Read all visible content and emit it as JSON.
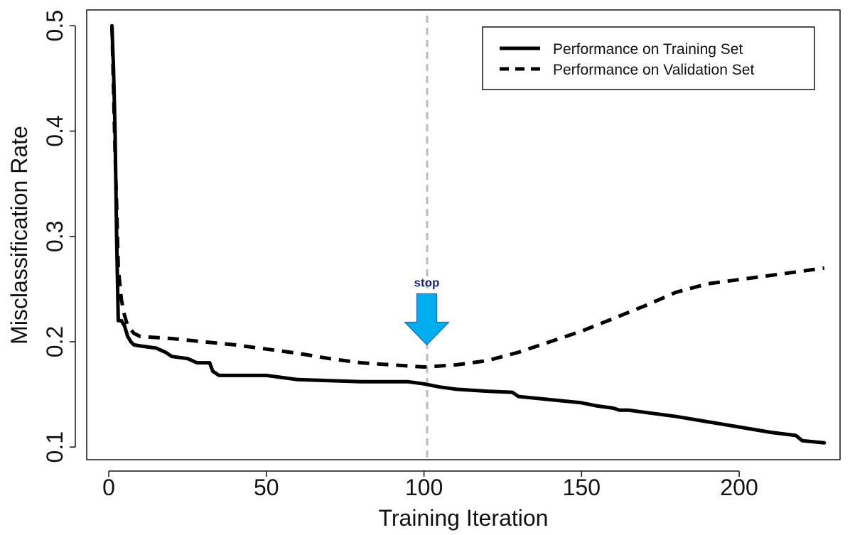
{
  "chart_data": {
    "type": "line",
    "title": "",
    "xlabel": "Training Iteration",
    "ylabel": "Misclassification Rate",
    "xlim": [
      -7,
      232
    ],
    "ylim": [
      0.088,
      0.515
    ],
    "xticks": [
      0,
      50,
      100,
      150,
      200
    ],
    "xtick_labels": [
      "0",
      "50",
      "100",
      "150",
      "200"
    ],
    "yticks": [
      0.1,
      0.2,
      0.3,
      0.4,
      0.5
    ],
    "ytick_labels": [
      "0.1",
      "0.2",
      "0.3",
      "0.4",
      "0.5"
    ],
    "grid": false,
    "legend_position": "top-right",
    "series": [
      {
        "name": "Performance on Training Set",
        "style": "solid",
        "color": "#000000",
        "x": [
          1,
          1.5,
          2,
          2.5,
          3,
          3.5,
          4,
          5,
          6,
          7,
          8,
          10,
          15,
          18,
          20,
          25,
          28,
          30,
          32,
          33,
          35,
          40,
          50,
          55,
          60,
          70,
          80,
          90,
          95,
          100,
          105,
          110,
          120,
          128,
          130,
          140,
          150,
          155,
          160,
          162,
          165,
          170,
          180,
          190,
          200,
          210,
          218,
          220,
          227
        ],
        "y": [
          0.5,
          0.46,
          0.4,
          0.3,
          0.22,
          0.22,
          0.22,
          0.215,
          0.205,
          0.2,
          0.197,
          0.196,
          0.194,
          0.19,
          0.186,
          0.184,
          0.18,
          0.18,
          0.18,
          0.172,
          0.168,
          0.168,
          0.168,
          0.166,
          0.164,
          0.163,
          0.162,
          0.162,
          0.162,
          0.16,
          0.157,
          0.155,
          0.153,
          0.152,
          0.148,
          0.145,
          0.142,
          0.139,
          0.137,
          0.135,
          0.135,
          0.133,
          0.129,
          0.124,
          0.119,
          0.114,
          0.111,
          0.106,
          0.104
        ]
      },
      {
        "name": "Performance on Validation Set",
        "style": "dashed",
        "color": "#000000",
        "x": [
          1,
          1.5,
          2,
          2.5,
          3,
          4,
          5,
          6,
          8,
          10,
          20,
          30,
          40,
          50,
          60,
          70,
          80,
          90,
          100,
          105,
          110,
          120,
          130,
          140,
          150,
          160,
          170,
          180,
          190,
          200,
          210,
          220,
          227
        ],
        "y": [
          0.5,
          0.44,
          0.38,
          0.33,
          0.27,
          0.24,
          0.225,
          0.215,
          0.208,
          0.205,
          0.203,
          0.2,
          0.197,
          0.193,
          0.189,
          0.184,
          0.18,
          0.178,
          0.176,
          0.177,
          0.178,
          0.182,
          0.19,
          0.2,
          0.21,
          0.222,
          0.234,
          0.247,
          0.255,
          0.259,
          0.263,
          0.267,
          0.27
        ]
      }
    ],
    "annotations": {
      "stop_line_x": 101,
      "stop_line_color": "#bbbbbb",
      "stop_label": "stop",
      "stop_arrow_color": "#00aeef",
      "stop_arrow_tip_y": 0.197,
      "stop_label_color": "#1a237e"
    }
  }
}
